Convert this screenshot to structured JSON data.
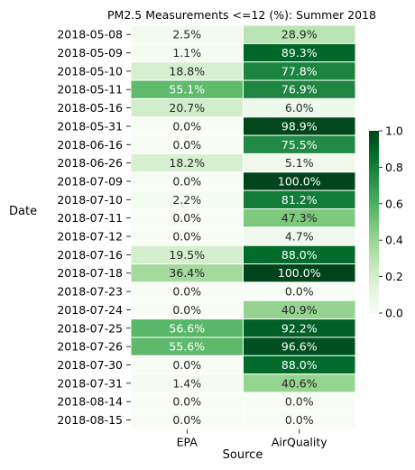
{
  "chart_data": {
    "type": "heatmap",
    "title": "PM2.5 Measurements <=12 (%): Summer 2018",
    "xlabel": "Source",
    "ylabel": "Date",
    "columns": [
      "EPA",
      "AirQuality"
    ],
    "rows": [
      "2018-05-08",
      "2018-05-09",
      "2018-05-10",
      "2018-05-11",
      "2018-05-16",
      "2018-05-31",
      "2018-06-16",
      "2018-06-26",
      "2018-07-09",
      "2018-07-10",
      "2018-07-11",
      "2018-07-12",
      "2018-07-16",
      "2018-07-18",
      "2018-07-23",
      "2018-07-24",
      "2018-07-25",
      "2018-07-26",
      "2018-07-30",
      "2018-07-31",
      "2018-08-14",
      "2018-08-15"
    ],
    "values": [
      [
        0.025,
        0.289
      ],
      [
        0.011,
        0.893
      ],
      [
        0.188,
        0.778
      ],
      [
        0.551,
        0.769
      ],
      [
        0.207,
        0.06
      ],
      [
        0.0,
        0.989
      ],
      [
        0.0,
        0.755
      ],
      [
        0.182,
        0.051
      ],
      [
        0.0,
        1.0
      ],
      [
        0.022,
        0.812
      ],
      [
        0.0,
        0.473
      ],
      [
        0.0,
        0.047
      ],
      [
        0.195,
        0.88
      ],
      [
        0.364,
        1.0
      ],
      [
        0.0,
        0.0
      ],
      [
        0.0,
        0.409
      ],
      [
        0.566,
        0.922
      ],
      [
        0.556,
        0.966
      ],
      [
        0.0,
        0.88
      ],
      [
        0.014,
        0.406
      ],
      [
        0.0,
        0.0
      ],
      [
        0.0,
        0.0
      ]
    ],
    "annotations": [
      [
        "2.5%",
        "28.9%"
      ],
      [
        "1.1%",
        "89.3%"
      ],
      [
        "18.8%",
        "77.8%"
      ],
      [
        "55.1%",
        "76.9%"
      ],
      [
        "20.7%",
        "6.0%"
      ],
      [
        "0.0%",
        "98.9%"
      ],
      [
        "0.0%",
        "75.5%"
      ],
      [
        "18.2%",
        "5.1%"
      ],
      [
        "0.0%",
        "100.0%"
      ],
      [
        "2.2%",
        "81.2%"
      ],
      [
        "0.0%",
        "47.3%"
      ],
      [
        "0.0%",
        "4.7%"
      ],
      [
        "19.5%",
        "88.0%"
      ],
      [
        "36.4%",
        "100.0%"
      ],
      [
        "0.0%",
        "0.0%"
      ],
      [
        "0.0%",
        "40.9%"
      ],
      [
        "56.6%",
        "92.2%"
      ],
      [
        "55.6%",
        "96.6%"
      ],
      [
        "0.0%",
        "88.0%"
      ],
      [
        "1.4%",
        "40.6%"
      ],
      [
        "0.0%",
        "0.0%"
      ],
      [
        "0.0%",
        "0.0%"
      ]
    ],
    "colorbar": {
      "range": [
        0,
        1
      ],
      "ticks": [
        "0.0",
        "0.2",
        "0.4",
        "0.6",
        "0.8",
        "1.0"
      ],
      "colormap": "Greens",
      "low_color": "#f7fcf5",
      "high_color": "#00441b"
    }
  }
}
